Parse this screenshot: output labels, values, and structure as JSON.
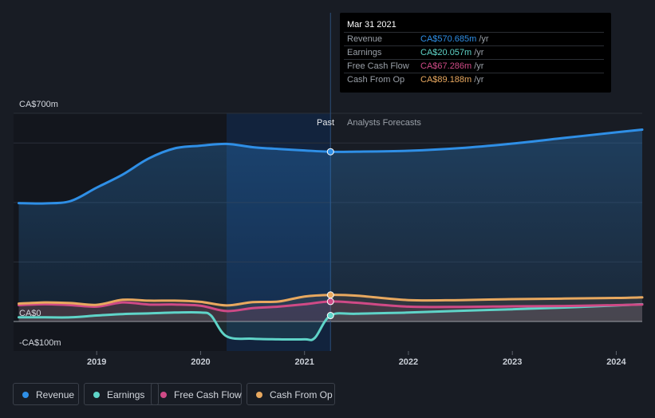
{
  "chart_data": {
    "type": "area",
    "y_axis": {
      "top_label": "CA$700m",
      "zero_label": "CA$0",
      "bottom_label": "-CA$100m",
      "ylim": [
        -100,
        700
      ]
    },
    "x_axis": {
      "tick_labels": [
        "2019",
        "2020",
        "2021",
        "2022",
        "2023",
        "2024"
      ],
      "xlim": [
        2018.2,
        2024.25
      ]
    },
    "past_label": "Past",
    "forecast_label": "Analysts Forecasts",
    "past_end": 2021.25,
    "highlight_start": 2020.25,
    "series": [
      {
        "name": "Revenue",
        "color": "#2f8fe6",
        "points": [
          [
            2018.25,
            398
          ],
          [
            2018.5,
            397
          ],
          [
            2018.75,
            405
          ],
          [
            2019.0,
            450
          ],
          [
            2019.25,
            494
          ],
          [
            2019.5,
            548
          ],
          [
            2019.75,
            582
          ],
          [
            2020.0,
            591
          ],
          [
            2020.25,
            597
          ],
          [
            2020.5,
            586
          ],
          [
            2020.75,
            580
          ],
          [
            2021.0,
            575
          ],
          [
            2021.25,
            570.685
          ],
          [
            2021.5,
            571
          ],
          [
            2022.0,
            574
          ],
          [
            2022.5,
            583
          ],
          [
            2023.0,
            598
          ],
          [
            2023.5,
            617
          ],
          [
            2024.0,
            636
          ],
          [
            2024.25,
            645
          ]
        ]
      },
      {
        "name": "Earnings",
        "color": "#5fd4c8",
        "points": [
          [
            2018.25,
            14
          ],
          [
            2018.5,
            14
          ],
          [
            2018.75,
            14
          ],
          [
            2019.0,
            20
          ],
          [
            2019.25,
            25
          ],
          [
            2019.5,
            27
          ],
          [
            2019.75,
            30
          ],
          [
            2020.0,
            30
          ],
          [
            2020.1,
            20
          ],
          [
            2020.25,
            -50
          ],
          [
            2020.5,
            -58
          ],
          [
            2020.75,
            -60
          ],
          [
            2021.0,
            -60
          ],
          [
            2021.1,
            -55
          ],
          [
            2021.25,
            20.057
          ],
          [
            2021.5,
            26
          ],
          [
            2022.0,
            30
          ],
          [
            2022.5,
            36
          ],
          [
            2023.0,
            41
          ],
          [
            2023.5,
            47
          ],
          [
            2024.0,
            54
          ],
          [
            2024.25,
            58
          ]
        ]
      },
      {
        "name": "Free Cash Flow",
        "color": "#cf4a86",
        "points": [
          [
            2018.25,
            55
          ],
          [
            2018.5,
            58
          ],
          [
            2018.75,
            55
          ],
          [
            2019.0,
            50
          ],
          [
            2019.25,
            64
          ],
          [
            2019.5,
            57
          ],
          [
            2019.75,
            57
          ],
          [
            2020.0,
            53
          ],
          [
            2020.25,
            35
          ],
          [
            2020.5,
            45
          ],
          [
            2020.75,
            50
          ],
          [
            2021.0,
            58
          ],
          [
            2021.25,
            67.286
          ],
          [
            2021.5,
            63
          ],
          [
            2022.0,
            50
          ],
          [
            2022.5,
            49
          ],
          [
            2023.0,
            51
          ],
          [
            2023.5,
            52
          ],
          [
            2024.0,
            55
          ],
          [
            2024.25,
            57
          ]
        ]
      },
      {
        "name": "Cash From Op",
        "color": "#e8a85f",
        "points": [
          [
            2018.25,
            60
          ],
          [
            2018.5,
            64
          ],
          [
            2018.75,
            62
          ],
          [
            2019.0,
            56
          ],
          [
            2019.25,
            73
          ],
          [
            2019.5,
            70
          ],
          [
            2019.75,
            70
          ],
          [
            2020.0,
            66
          ],
          [
            2020.25,
            54
          ],
          [
            2020.5,
            65
          ],
          [
            2020.75,
            67
          ],
          [
            2021.0,
            84
          ],
          [
            2021.25,
            89.188
          ],
          [
            2021.5,
            87
          ],
          [
            2022.0,
            72
          ],
          [
            2022.5,
            72
          ],
          [
            2023.0,
            75
          ],
          [
            2023.5,
            77
          ],
          [
            2024.0,
            79
          ],
          [
            2024.25,
            81
          ]
        ]
      }
    ],
    "tooltip": {
      "date": "Mar 31 2021",
      "unit": "/yr",
      "rows": [
        {
          "name": "Revenue",
          "value": "CA$570.685m",
          "color": "#2f8fe6"
        },
        {
          "name": "Earnings",
          "value": "CA$20.057m",
          "color": "#5fd4c8"
        },
        {
          "name": "Free Cash Flow",
          "value": "CA$67.286m",
          "color": "#cf4a86"
        },
        {
          "name": "Cash From Op",
          "value": "CA$89.188m",
          "color": "#e8a85f"
        }
      ]
    },
    "grid": true,
    "legend_position": "bottom-left"
  }
}
